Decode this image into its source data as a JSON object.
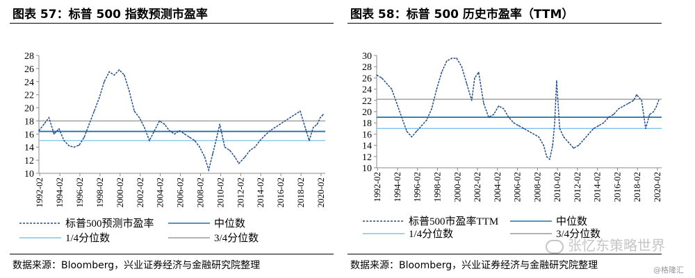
{
  "charts": [
    {
      "title": "图表 57：标普 500 指数预测市盈率",
      "source": "数据来源：Bloomberg，兴业证券经济与金融研究院整理"
    },
    {
      "title": "图表 58：标普 500 历史市盈率（TTM）",
      "source": "数据来源：Bloomberg，兴业证券经济与金融研究院整理"
    }
  ],
  "watermark": "张忆东策略世界",
  "watermark2": "@格隆汇",
  "chart_data": [
    {
      "type": "line",
      "x_ticks": [
        "1992-02",
        "1994-02",
        "1996-02",
        "1998-02",
        "2000-02",
        "2002-02",
        "2004-02",
        "2006-02",
        "2008-02",
        "2010-02",
        "2012-02",
        "2014-02",
        "2016-02",
        "2018-02",
        "2020-02"
      ],
      "xlim": [
        1992.0,
        2020.5
      ],
      "ylim": [
        10,
        28
      ],
      "y_ticks": [
        10,
        12,
        14,
        16,
        18,
        20,
        22,
        24,
        26,
        28
      ],
      "series": [
        {
          "name": "标普500预测市盈率",
          "style": "dashed",
          "color": "#1F4E8C",
          "x": [
            1992.0,
            1992.5,
            1993.0,
            1993.5,
            1994.0,
            1994.5,
            1995.0,
            1995.5,
            1996.0,
            1996.5,
            1997.0,
            1997.5,
            1998.0,
            1998.5,
            1999.0,
            1999.5,
            2000.0,
            2000.5,
            2001.0,
            2001.5,
            2002.0,
            2002.5,
            2003.0,
            2003.5,
            2004.0,
            2004.5,
            2005.0,
            2005.5,
            2006.0,
            2006.5,
            2007.0,
            2007.5,
            2008.0,
            2008.5,
            2008.9,
            2009.3,
            2009.7,
            2010.0,
            2010.5,
            2011.0,
            2011.5,
            2011.9,
            2012.5,
            2013.0,
            2013.5,
            2014.0,
            2014.5,
            2015.0,
            2015.5,
            2016.0,
            2016.5,
            2017.0,
            2017.5,
            2018.0,
            2018.5,
            2018.9,
            2019.3,
            2019.7,
            2020.0,
            2020.3
          ],
          "y": [
            16.5,
            17.5,
            18.5,
            16.0,
            16.8,
            15.0,
            14.2,
            14.0,
            14.3,
            15.5,
            17.5,
            19.5,
            21.5,
            24.0,
            25.5,
            25.0,
            25.8,
            25.0,
            22.5,
            19.5,
            18.5,
            17.0,
            15.0,
            16.5,
            18.0,
            17.5,
            16.5,
            16.0,
            16.5,
            16.0,
            15.5,
            15.0,
            14.0,
            12.5,
            10.5,
            13.0,
            15.5,
            17.5,
            14.0,
            13.5,
            12.5,
            11.5,
            12.5,
            13.5,
            14.0,
            15.0,
            15.8,
            16.5,
            17.0,
            17.5,
            18.0,
            18.5,
            19.0,
            19.5,
            17.0,
            15.0,
            17.0,
            17.5,
            18.5,
            19.0
          ]
        },
        {
          "name": "中位数",
          "style": "solid",
          "color": "#1F6FA8",
          "value": 16.4
        },
        {
          "name": "1/4分位数",
          "style": "solid",
          "color": "#7EC0EA",
          "value": 15.0
        },
        {
          "name": "3/4分位数",
          "style": "solid",
          "color": "#9A9A9A",
          "value": 18.0
        }
      ]
    },
    {
      "type": "line",
      "x_ticks": [
        "1992-02",
        "1994-02",
        "1996-02",
        "1998-02",
        "2000-02",
        "2002-02",
        "2004-02",
        "2006-02",
        "2008-02",
        "2010-02",
        "2012-02",
        "2014-02",
        "2016-02",
        "2018-02",
        "2020-02"
      ],
      "xlim": [
        1992.0,
        2020.5
      ],
      "ylim": [
        10,
        30
      ],
      "y_ticks": [
        10,
        12,
        14,
        16,
        18,
        20,
        22,
        24,
        26,
        28,
        30
      ],
      "series": [
        {
          "name": "标普500市盈率TTM",
          "style": "dashed",
          "color": "#1F4E8C",
          "x": [
            1992.0,
            1992.5,
            1993.0,
            1993.5,
            1994.0,
            1994.5,
            1995.0,
            1995.5,
            1996.0,
            1996.5,
            1997.0,
            1997.5,
            1998.0,
            1998.5,
            1999.0,
            1999.5,
            2000.0,
            2000.5,
            2001.0,
            2001.5,
            2001.8,
            2002.2,
            2002.7,
            2003.2,
            2003.7,
            2004.2,
            2004.7,
            2005.2,
            2005.7,
            2006.2,
            2006.7,
            2007.2,
            2007.7,
            2008.2,
            2008.7,
            2009.0,
            2009.3,
            2009.6,
            2009.8,
            2010.0,
            2010.3,
            2010.7,
            2011.2,
            2011.7,
            2012.2,
            2012.7,
            2013.2,
            2013.7,
            2014.2,
            2014.7,
            2015.2,
            2015.7,
            2016.2,
            2016.7,
            2017.2,
            2017.7,
            2018.0,
            2018.5,
            2018.9,
            2019.3,
            2019.7,
            2020.0,
            2020.2
          ],
          "y": [
            26.5,
            26.0,
            25.0,
            24.0,
            21.5,
            19.0,
            16.5,
            15.5,
            16.5,
            17.5,
            18.5,
            20.5,
            24.0,
            27.0,
            29.0,
            29.5,
            29.5,
            28.0,
            25.0,
            22.0,
            26.0,
            27.0,
            21.5,
            19.0,
            19.5,
            21.0,
            20.5,
            19.0,
            18.0,
            17.5,
            17.0,
            16.5,
            16.0,
            15.5,
            14.0,
            12.0,
            11.5,
            14.0,
            18.0,
            25.5,
            17.0,
            15.5,
            14.5,
            13.5,
            14.0,
            15.0,
            16.0,
            17.0,
            17.5,
            18.0,
            19.0,
            19.5,
            20.5,
            21.0,
            21.5,
            22.0,
            23.0,
            22.0,
            17.0,
            19.5,
            20.0,
            21.0,
            22.0
          ]
        },
        {
          "name": "中位数",
          "style": "solid",
          "color": "#1F6FA8",
          "value": 19.0
        },
        {
          "name": "1/4分位数",
          "style": "solid",
          "color": "#7EC0EA",
          "value": 17.0
        },
        {
          "name": "3/4分位数",
          "style": "solid",
          "color": "#9A9A9A",
          "value": 22.2
        }
      ]
    }
  ]
}
